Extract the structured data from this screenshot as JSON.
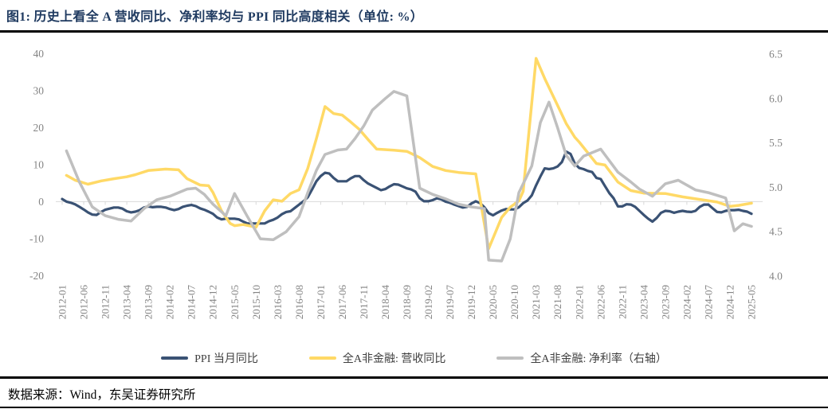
{
  "header": {
    "title": "图1:  历史上看全 A 营收同比、净利率均与 PPI 同比高度相关（单位: %）"
  },
  "footer": {
    "source": "数据来源：Wind，东吴证券研究所"
  },
  "chart_data": {
    "type": "line",
    "title": "历史上看全A营收同比、净利率均与PPI同比高度相关",
    "unit": "%",
    "grid": "zero-axis-only",
    "grid_color": "#d9d9d9",
    "legend_position": "bottom",
    "x_start": "2012-01",
    "x_end": "2025-05",
    "x_tick_interval_months": 5,
    "x_tick_labels": [
      "2012-01",
      "2012-06",
      "2012-11",
      "2013-04",
      "2013-09",
      "2014-02",
      "2014-07",
      "2014-12",
      "2015-05",
      "2015-10",
      "2016-03",
      "2016-08",
      "2017-01",
      "2017-06",
      "2017-11",
      "2018-04",
      "2018-09",
      "2019-02",
      "2019-07",
      "2019-12",
      "2020-05",
      "2020-10",
      "2021-03",
      "2021-08",
      "2022-01",
      "2022-06",
      "2022-11",
      "2023-04",
      "2023-09",
      "2024-02",
      "2024-07",
      "2024-12",
      "2025-05"
    ],
    "left_axis": {
      "min": -20,
      "max": 40,
      "ticks": [
        40,
        30,
        20,
        10,
        0,
        -10,
        -20
      ]
    },
    "right_axis": {
      "min": 4.0,
      "max": 6.5,
      "ticks": [
        "6.5",
        "6.0",
        "5.5",
        "5.0",
        "4.5",
        "4.0"
      ]
    },
    "series": [
      {
        "name": "PPI 当月同比",
        "axis": "left",
        "color": "#3a5274",
        "width": 3.2,
        "start": "2012-01",
        "monthly_values": [
          0.7,
          0.0,
          -0.3,
          -0.7,
          -1.4,
          -2.1,
          -2.9,
          -3.5,
          -3.6,
          -2.8,
          -2.2,
          -1.9,
          -1.6,
          -1.6,
          -1.9,
          -2.6,
          -2.9,
          -2.7,
          -2.3,
          -1.6,
          -1.3,
          -1.5,
          -1.4,
          -1.4,
          -1.6,
          -2.0,
          -2.3,
          -2.0,
          -1.4,
          -1.1,
          -0.9,
          -1.2,
          -1.8,
          -2.2,
          -2.7,
          -3.3,
          -4.3,
          -4.8,
          -4.6,
          -4.6,
          -4.6,
          -4.8,
          -5.4,
          -5.9,
          -5.9,
          -5.9,
          -5.9,
          -5.9,
          -5.3,
          -4.9,
          -4.3,
          -3.4,
          -2.8,
          -2.6,
          -1.7,
          -0.8,
          0.1,
          1.2,
          3.3,
          5.5,
          6.9,
          7.8,
          7.6,
          6.4,
          5.5,
          5.5,
          5.5,
          6.3,
          6.9,
          6.9,
          5.8,
          4.9,
          4.3,
          3.7,
          3.1,
          3.4,
          4.1,
          4.7,
          4.6,
          4.1,
          3.6,
          3.3,
          2.7,
          0.9,
          0.1,
          0.1,
          0.4,
          0.9,
          0.6,
          0.0,
          -0.3,
          -0.8,
          -1.2,
          -1.6,
          -1.4,
          -0.5,
          0.1,
          -0.4,
          -1.5,
          -3.1,
          -3.7,
          -3.0,
          -2.4,
          -2.0,
          -2.1,
          -2.1,
          -1.5,
          -0.4,
          0.3,
          1.7,
          4.4,
          6.8,
          9.0,
          8.8,
          9.0,
          9.5,
          10.7,
          13.5,
          12.9,
          10.3,
          9.1,
          8.8,
          8.3,
          8.0,
          6.4,
          6.1,
          4.2,
          2.3,
          0.9,
          -1.3,
          -1.3,
          -0.7,
          -0.8,
          -1.4,
          -2.5,
          -3.6,
          -4.6,
          -5.4,
          -4.4,
          -3.0,
          -2.5,
          -2.6,
          -3.0,
          -2.7,
          -2.5,
          -2.7,
          -2.8,
          -2.5,
          -1.4,
          -0.8,
          -0.8,
          -1.8,
          -2.8,
          -2.9,
          -2.5,
          -2.3,
          -2.3,
          -2.2,
          -2.5,
          -2.7,
          -3.3
        ]
      },
      {
        "name": "全A非金融: 营收同比",
        "axis": "left",
        "color": "#ffd966",
        "width": 3.5,
        "points": [
          {
            "m": "2012-02",
            "v": 7.1
          },
          {
            "m": "2012-04",
            "v": 5.8
          },
          {
            "m": "2012-07",
            "v": 4.7
          },
          {
            "m": "2012-10",
            "v": 5.6
          },
          {
            "m": "2013-01",
            "v": 6.2
          },
          {
            "m": "2013-04",
            "v": 6.7
          },
          {
            "m": "2013-06",
            "v": 7.3
          },
          {
            "m": "2013-09",
            "v": 8.4
          },
          {
            "m": "2014-01",
            "v": 8.8
          },
          {
            "m": "2014-04",
            "v": 8.6
          },
          {
            "m": "2014-06",
            "v": 6.2
          },
          {
            "m": "2014-09",
            "v": 4.5
          },
          {
            "m": "2014-11",
            "v": 4.3
          },
          {
            "m": "2014-12",
            "v": 2.5
          },
          {
            "m": "2015-02",
            "v": -2.5
          },
          {
            "m": "2015-04",
            "v": -5.9
          },
          {
            "m": "2015-05",
            "v": -6.5
          },
          {
            "m": "2015-07",
            "v": -6.2
          },
          {
            "m": "2015-10",
            "v": -6.9
          },
          {
            "m": "2015-12",
            "v": -2.5
          },
          {
            "m": "2016-02",
            "v": 0.5
          },
          {
            "m": "2016-04",
            "v": 0.1
          },
          {
            "m": "2016-06",
            "v": 2.2
          },
          {
            "m": "2016-08",
            "v": 3.2
          },
          {
            "m": "2016-10",
            "v": 9.0
          },
          {
            "m": "2016-12",
            "v": 17.0
          },
          {
            "m": "2017-02",
            "v": 25.7
          },
          {
            "m": "2017-04",
            "v": 23.8
          },
          {
            "m": "2017-06",
            "v": 23.4
          },
          {
            "m": "2017-08",
            "v": 21.5
          },
          {
            "m": "2017-10",
            "v": 19.5
          },
          {
            "m": "2017-12",
            "v": 16.8
          },
          {
            "m": "2018-02",
            "v": 14.2
          },
          {
            "m": "2018-06",
            "v": 13.9
          },
          {
            "m": "2018-09",
            "v": 13.6
          },
          {
            "m": "2018-12",
            "v": 11.9
          },
          {
            "m": "2019-03",
            "v": 9.5
          },
          {
            "m": "2019-06",
            "v": 8.4
          },
          {
            "m": "2019-09",
            "v": 7.9
          },
          {
            "m": "2019-12",
            "v": 7.6
          },
          {
            "m": "2020-01",
            "v": 7.5
          },
          {
            "m": "2020-04",
            "v": -12.7
          },
          {
            "m": "2020-07",
            "v": -4.3
          },
          {
            "m": "2020-09",
            "v": -1.5
          },
          {
            "m": "2020-11",
            "v": 0.2
          },
          {
            "m": "2020-12",
            "v": 2.8
          },
          {
            "m": "2021-03",
            "v": 38.7
          },
          {
            "m": "2021-05",
            "v": 33.3
          },
          {
            "m": "2021-08",
            "v": 26.0
          },
          {
            "m": "2021-10",
            "v": 21.1
          },
          {
            "m": "2021-12",
            "v": 17.4
          },
          {
            "m": "2022-01",
            "v": 16.1
          },
          {
            "m": "2022-03",
            "v": 13.2
          },
          {
            "m": "2022-05",
            "v": 10.3
          },
          {
            "m": "2022-07",
            "v": 9.9
          },
          {
            "m": "2022-10",
            "v": 5.3
          },
          {
            "m": "2023-01",
            "v": 3.0
          },
          {
            "m": "2023-04",
            "v": 2.3
          },
          {
            "m": "2023-09",
            "v": 2.2
          },
          {
            "m": "2024-01",
            "v": 1.3
          },
          {
            "m": "2024-05",
            "v": 0.6
          },
          {
            "m": "2024-09",
            "v": -0.1
          },
          {
            "m": "2024-12",
            "v": -1.3
          },
          {
            "m": "2025-02",
            "v": -1.0
          },
          {
            "m": "2025-05",
            "v": -0.4
          }
        ]
      },
      {
        "name": "全A非金融: 净利率（右轴）",
        "axis": "right",
        "color": "#bfbfbf",
        "width": 3.5,
        "points": [
          {
            "m": "2012-02",
            "v": 5.41
          },
          {
            "m": "2012-05",
            "v": 5.06
          },
          {
            "m": "2012-08",
            "v": 4.78
          },
          {
            "m": "2012-11",
            "v": 4.68
          },
          {
            "m": "2013-02",
            "v": 4.64
          },
          {
            "m": "2013-05",
            "v": 4.62
          },
          {
            "m": "2013-08",
            "v": 4.76
          },
          {
            "m": "2013-11",
            "v": 4.86
          },
          {
            "m": "2014-02",
            "v": 4.9
          },
          {
            "m": "2014-06",
            "v": 4.98
          },
          {
            "m": "2014-08",
            "v": 4.99
          },
          {
            "m": "2014-10",
            "v": 4.92
          },
          {
            "m": "2014-12",
            "v": 4.81
          },
          {
            "m": "2015-03",
            "v": 4.68
          },
          {
            "m": "2015-05",
            "v": 4.93
          },
          {
            "m": "2015-08",
            "v": 4.67
          },
          {
            "m": "2015-11",
            "v": 4.42
          },
          {
            "m": "2016-02",
            "v": 4.41
          },
          {
            "m": "2016-05",
            "v": 4.5
          },
          {
            "m": "2016-08",
            "v": 4.67
          },
          {
            "m": "2016-10",
            "v": 4.94
          },
          {
            "m": "2016-12",
            "v": 5.19
          },
          {
            "m": "2017-02",
            "v": 5.37
          },
          {
            "m": "2017-05",
            "v": 5.42
          },
          {
            "m": "2017-07",
            "v": 5.43
          },
          {
            "m": "2017-09",
            "v": 5.55
          },
          {
            "m": "2017-11",
            "v": 5.69
          },
          {
            "m": "2018-01",
            "v": 5.87
          },
          {
            "m": "2018-04",
            "v": 6.0
          },
          {
            "m": "2018-06",
            "v": 6.08
          },
          {
            "m": "2018-09",
            "v": 6.03
          },
          {
            "m": "2018-12",
            "v": 4.99
          },
          {
            "m": "2019-03",
            "v": 4.92
          },
          {
            "m": "2019-06",
            "v": 4.87
          },
          {
            "m": "2019-09",
            "v": 4.81
          },
          {
            "m": "2019-12",
            "v": 4.78
          },
          {
            "m": "2020-03",
            "v": 4.76
          },
          {
            "m": "2020-04",
            "v": 4.18
          },
          {
            "m": "2020-07",
            "v": 4.17
          },
          {
            "m": "2020-09",
            "v": 4.42
          },
          {
            "m": "2020-11",
            "v": 4.94
          },
          {
            "m": "2021-02",
            "v": 5.24
          },
          {
            "m": "2021-04",
            "v": 5.73
          },
          {
            "m": "2021-06",
            "v": 5.96
          },
          {
            "m": "2021-08",
            "v": 5.67
          },
          {
            "m": "2021-10",
            "v": 5.36
          },
          {
            "m": "2021-12",
            "v": 5.24
          },
          {
            "m": "2022-02",
            "v": 5.35
          },
          {
            "m": "2022-06",
            "v": 5.43
          },
          {
            "m": "2022-10",
            "v": 5.17
          },
          {
            "m": "2023-01",
            "v": 5.06
          },
          {
            "m": "2023-03",
            "v": 4.98
          },
          {
            "m": "2023-06",
            "v": 4.9
          },
          {
            "m": "2023-09",
            "v": 5.04
          },
          {
            "m": "2023-12",
            "v": 5.08
          },
          {
            "m": "2024-04",
            "v": 4.97
          },
          {
            "m": "2024-07",
            "v": 4.94
          },
          {
            "m": "2024-11",
            "v": 4.88
          },
          {
            "m": "2025-01",
            "v": 4.51
          },
          {
            "m": "2025-03",
            "v": 4.59
          },
          {
            "m": "2025-05",
            "v": 4.56
          }
        ]
      }
    ]
  }
}
